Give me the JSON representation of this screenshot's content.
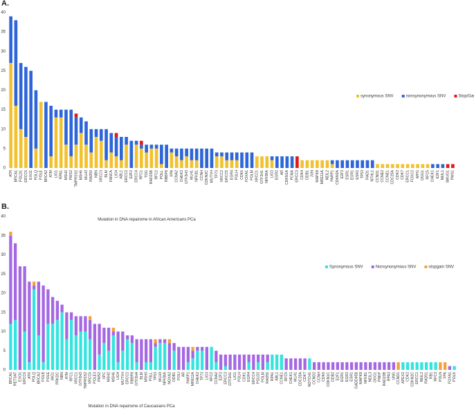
{
  "chart_data": [
    {
      "type": "bar",
      "stacked": true,
      "panel_label": "A.",
      "xlabel": "Mutation in DNA repairome in African Americans PCa",
      "ylim": [
        0,
        40
      ],
      "yticks": [
        0,
        5,
        10,
        15,
        20,
        25,
        30,
        35,
        40
      ],
      "grid": false,
      "legend": "right",
      "categories": [
        "ATR",
        "BRCA1",
        "POLD1",
        "ERCC6",
        "EXO1",
        "POLQ",
        "POLE",
        "BRCA2",
        "ATM",
        "LIG1",
        "RPA1",
        "MSH2",
        "PMS2",
        "TMPRSS2",
        "MSH6",
        "MLH3",
        "RAD50",
        "NBN",
        "XRCC3",
        "BLM",
        "FANCA",
        "LIG4",
        "ABL1",
        "ERCC2",
        "E2F2",
        "ERCC4",
        "RFC1",
        "TDG",
        "RAD23B",
        "RFC2",
        "POLL",
        "RBBP8",
        "XPA",
        "CCNA2",
        "CHEK2",
        "GTF2H3",
        "MLH1",
        "NFKB1",
        "CCNH",
        "CDKN2C",
        "MUTYH",
        "TP73",
        "XRCC2",
        "ERCC5",
        "EGR4",
        "POLH",
        "CDK6",
        "FOXA1",
        "POLM",
        "XRCC1",
        "GTF2H1",
        "NFKBIA",
        "LIG3",
        "EGR2",
        "AR",
        "CDKN1A",
        "PCNA",
        "ERCC3",
        "CDK4",
        "DDB1",
        "JUN",
        "MAPK8",
        "MRE11A",
        "NEIL2",
        "PARP1",
        "CDKN2A",
        "E2F3",
        "ESR1",
        "EGR1",
        "ESR2",
        "TP53",
        "RAD1",
        "NTHL1",
        "CCND1",
        "CCNE2",
        "CCNE1",
        "CDC25A",
        "CDK2",
        "CDK7",
        "ERCC1",
        "FOXC2",
        "MPG",
        "OGG1",
        "RFC5",
        "CHEK1",
        "E2F1",
        "NEIL1",
        "SMUG1",
        "PMS1"
      ],
      "series": [
        {
          "name": "synonymous SNV",
          "color": "#f2c12e",
          "values": [
            27,
            16,
            10,
            8,
            0,
            5,
            17,
            0,
            3,
            13,
            13,
            6,
            3,
            6,
            9,
            6,
            4,
            8,
            7,
            2,
            4,
            3,
            2,
            6,
            0,
            6,
            5,
            4,
            5,
            5,
            1,
            0,
            4,
            3,
            2,
            3,
            2,
            2,
            0,
            0,
            0,
            3,
            3,
            2,
            2,
            2,
            0,
            0,
            0,
            3,
            3,
            3,
            2,
            0,
            0,
            0,
            0,
            0,
            2,
            2,
            2,
            2,
            2,
            2,
            1,
            0,
            0,
            0,
            0,
            0,
            0,
            0,
            0,
            1,
            1,
            1,
            1,
            1,
            1,
            1,
            1,
            1,
            1,
            1,
            0,
            0,
            0,
            0,
            0
          ]
        },
        {
          "name": "nonsynonymous SNV",
          "color": "#2e66d8",
          "values": [
            12,
            22,
            17,
            18,
            25,
            15,
            0,
            17,
            13,
            2,
            2,
            9,
            12,
            7,
            4,
            6,
            6,
            2,
            3,
            8,
            5,
            5,
            6,
            2,
            7,
            1,
            1,
            2,
            1,
            1,
            5,
            6,
            1,
            2,
            3,
            2,
            3,
            3,
            5,
            5,
            5,
            1,
            1,
            2,
            2,
            2,
            4,
            4,
            4,
            0,
            0,
            0,
            1,
            3,
            3,
            3,
            3,
            0,
            0,
            0,
            0,
            0,
            0,
            0,
            1,
            2,
            2,
            2,
            2,
            2,
            2,
            2,
            2,
            0,
            0,
            0,
            0,
            0,
            0,
            0,
            0,
            0,
            0,
            0,
            1,
            1,
            1,
            0,
            0
          ]
        },
        {
          "name": "Stop/Gain",
          "color": "#e01919",
          "values": [
            0,
            0,
            0,
            0,
            0,
            0,
            0,
            0,
            0,
            0,
            0,
            0,
            0,
            1,
            0,
            0,
            0,
            0,
            0,
            0,
            0,
            1,
            0,
            0,
            0,
            0,
            1,
            0,
            0,
            0,
            0,
            0,
            0,
            0,
            0,
            0,
            0,
            0,
            0,
            0,
            0,
            0,
            0,
            0,
            0,
            0,
            0,
            0,
            0,
            0,
            0,
            0,
            0,
            0,
            0,
            0,
            0,
            3,
            0,
            0,
            0,
            0,
            0,
            0,
            0,
            0,
            0,
            0,
            0,
            0,
            0,
            0,
            0,
            0,
            0,
            0,
            0,
            0,
            0,
            0,
            0,
            0,
            0,
            0,
            0,
            0,
            0,
            1,
            1
          ]
        }
      ]
    },
    {
      "type": "bar",
      "stacked": true,
      "panel_label": "B.",
      "xlabel": "Mutation in DNA repairome of Caucasians PCa",
      "ylim": [
        0,
        40
      ],
      "yticks": [
        0,
        5,
        10,
        15,
        20,
        25,
        30,
        35,
        40
      ],
      "grid": false,
      "legend": "right",
      "categories": [
        "BRCA1",
        "RETSAT",
        "EXO1",
        "ERCC6",
        "ATR",
        "POLQ",
        "BRCA2",
        "POLB",
        "POLE",
        "JAG1",
        "PRKDC",
        "NBN",
        "ATM",
        "RFC1",
        "XRCC1",
        "GTF2H3",
        "TMPRSS2",
        "XRCC6",
        "POLE3",
        "PMS2",
        "XPC",
        "MSH2",
        "MSH6",
        "LIG4",
        "MUTYH",
        "ERCC2",
        "RBBP8",
        "GTF2H4",
        "BLM",
        "MSH3",
        "POLL",
        "TP53",
        "MLH3",
        "NFKBIA",
        "NOXA2",
        "DDB1",
        "POLI",
        "AR",
        "PARP1",
        "MRE11A",
        "CHEK2",
        "TP73",
        "LIG3",
        "RFC2",
        "CCNA2",
        "E2F2",
        "ERCC3",
        "GTF2H1",
        "LIG1",
        "POLH",
        "CDK1",
        "EGR4",
        "ERCC4",
        "POLD2",
        "POLM",
        "RAD50",
        "RPA1",
        "ABL1",
        "CCNE1",
        "RFC5",
        "CHEK1",
        "MLH1",
        "CDC25A",
        "CDK7",
        "NOTCH1",
        "CCND2",
        "CCNH",
        "CDK6",
        "CDKN1C",
        "DDB2",
        "E2F1",
        "EGR1",
        "EGR2",
        "ESR1",
        "GADD45B",
        "MAPK8",
        "NFKB1",
        "NEIL3",
        "OGG1",
        "PNKP",
        "RAD23B",
        "RPA3",
        "UNG",
        "CCND1",
        "APEX2",
        "CDK2",
        "CDKN2C",
        "ERCC1",
        "NEIL2",
        "RAD51",
        "RB1",
        "RFC3",
        "POLN",
        "XPA",
        "FOXA1",
        "POLK"
      ],
      "series": [
        {
          "name": "Synonymous SNV",
          "color": "#35e3df",
          "values": [
            12,
            13,
            0,
            10,
            2,
            21,
            9,
            2,
            12,
            12,
            13,
            15,
            8,
            13,
            9,
            10,
            10,
            8,
            0,
            4,
            7,
            5,
            9,
            2,
            5,
            8,
            7,
            2,
            0,
            2,
            2,
            6,
            7,
            7,
            0,
            5,
            0,
            0,
            2,
            3,
            5,
            5,
            0,
            6,
            2,
            0,
            1,
            0,
            0,
            0,
            0,
            2,
            0,
            2,
            0,
            2,
            4,
            4,
            4,
            0,
            0,
            0,
            0,
            0,
            3,
            0,
            0,
            0,
            0,
            0,
            0,
            0,
            0,
            0,
            0,
            0,
            0,
            0,
            0,
            0,
            0,
            0,
            0,
            0,
            2,
            2,
            2,
            2,
            2,
            2,
            2,
            2,
            0,
            0,
            0,
            1
          ]
        },
        {
          "name": "Nonsynonymous SNV",
          "color": "#a468e2",
          "values": [
            23,
            20,
            27,
            17,
            21,
            1,
            14,
            20,
            9,
            7,
            5,
            2,
            7,
            2,
            5,
            4,
            4,
            5,
            12,
            8,
            4,
            6,
            1,
            8,
            5,
            1,
            2,
            6,
            8,
            6,
            6,
            1,
            1,
            1,
            7,
            2,
            6,
            6,
            4,
            2,
            1,
            1,
            6,
            0,
            3,
            4,
            3,
            4,
            4,
            4,
            4,
            2,
            4,
            2,
            4,
            2,
            0,
            0,
            0,
            3,
            3,
            3,
            3,
            3,
            0,
            2,
            2,
            2,
            2,
            2,
            2,
            2,
            2,
            2,
            2,
            2,
            2,
            2,
            2,
            2,
            2,
            2,
            2,
            0,
            0,
            0,
            0,
            0,
            0,
            0,
            0,
            0,
            0,
            0,
            1,
            0
          ]
        },
        {
          "name": "stopgain SNV",
          "color": "#f2a23c",
          "values": [
            1,
            0,
            0,
            0,
            0,
            1,
            0,
            0,
            0,
            0,
            0,
            0,
            0,
            0,
            0,
            0,
            0,
            1,
            0,
            0,
            0,
            0,
            1,
            0,
            0,
            0,
            0,
            0,
            0,
            0,
            0,
            1,
            0,
            0,
            1,
            0,
            0,
            0,
            0,
            1,
            0,
            0,
            0,
            0,
            0,
            0,
            0,
            0,
            0,
            0,
            0,
            0,
            0,
            0,
            0,
            0,
            0,
            0,
            0,
            0,
            0,
            0,
            0,
            0,
            0,
            0,
            0,
            0,
            0,
            0,
            0,
            0,
            0,
            0,
            0,
            0,
            0,
            0,
            0,
            0,
            0,
            0,
            0,
            2,
            0,
            0,
            0,
            0,
            0,
            0,
            0,
            0,
            2,
            2,
            0,
            0
          ]
        }
      ]
    }
  ]
}
